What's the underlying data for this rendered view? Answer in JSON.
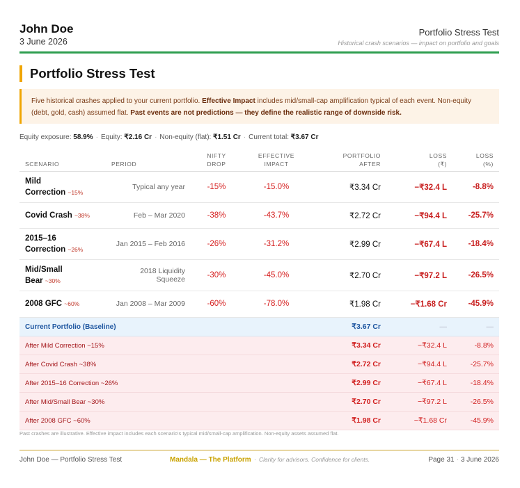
{
  "header": {
    "client_name": "John Doe",
    "date": "3 June 2026",
    "title": "Portfolio Stress Test",
    "subtitle": "Historical crash scenarios — impact on portfolio and goals"
  },
  "section_title": "Portfolio Stress Test",
  "callout": {
    "p1": "Five historical crashes applied to your current portfolio. ",
    "b1": "Effective Impact",
    "p2": " includes mid/small-cap amplification typical of each event. Non-equity (debt, gold, cash) assumed flat. ",
    "b2": "Past events are not predictions — they define the realistic range of downside risk."
  },
  "summary": {
    "equity_exposure_label": "Equity exposure:",
    "equity_exposure": "58.9%",
    "equity_label": "Equity:",
    "equity": "₹2.16 Cr",
    "non_equity_label": "Non-equity (flat):",
    "non_equity": "₹1.51 Cr",
    "total_label": "Current total:",
    "total": "₹3.67 Cr"
  },
  "columns": {
    "scenario": "Scenario",
    "period": "Period",
    "nifty_1": "Nifty",
    "nifty_2": "Drop",
    "effective_1": "Effective",
    "effective_2": "Impact",
    "portfolio_1": "Portfolio",
    "portfolio_2": "After",
    "loss_rs_1": "Loss",
    "loss_rs_2": "(₹)",
    "loss_pct_1": "Loss",
    "loss_pct_2": "(%)"
  },
  "scenarios": [
    {
      "name": "Mild Correction",
      "tag": "~15%",
      "period": "Typical any year",
      "nifty": "-15%",
      "effective": "-15.0%",
      "after": "₹3.34 Cr",
      "loss": "−₹32.4 L",
      "loss_pct": "-8.8%"
    },
    {
      "name": "Covid Crash",
      "tag": "~38%",
      "period": "Feb – Mar 2020",
      "nifty": "-38%",
      "effective": "-43.7%",
      "after": "₹2.72 Cr",
      "loss": "−₹94.4 L",
      "loss_pct": "-25.7%"
    },
    {
      "name": "2015–16 Correction",
      "tag": "~26%",
      "period": "Jan 2015 – Feb 2016",
      "nifty": "-26%",
      "effective": "-31.2%",
      "after": "₹2.99 Cr",
      "loss": "−₹67.4 L",
      "loss_pct": "-18.4%"
    },
    {
      "name": "Mid/Small Bear",
      "tag": "~30%",
      "period": "2018 Liquidity Squeeze",
      "nifty": "-30%",
      "effective": "-45.0%",
      "after": "₹2.70 Cr",
      "loss": "−₹97.2 L",
      "loss_pct": "-26.5%"
    },
    {
      "name": "2008 GFC",
      "tag": "~60%",
      "period": "Jan 2008 – Mar 2009",
      "nifty": "-60%",
      "effective": "-78.0%",
      "after": "₹1.98 Cr",
      "loss": "−₹1.68 Cr",
      "loss_pct": "-45.9%"
    }
  ],
  "baseline": {
    "label": "Current Portfolio (Baseline)",
    "after": "₹3.67 Cr",
    "loss": "—",
    "loss_pct": "—"
  },
  "after_rows": [
    {
      "label": "After Mild Correction ~15%",
      "after": "₹3.34 Cr",
      "loss": "−₹32.4 L",
      "loss_pct": "-8.8%"
    },
    {
      "label": "After Covid Crash ~38%",
      "after": "₹2.72 Cr",
      "loss": "−₹94.4 L",
      "loss_pct": "-25.7%"
    },
    {
      "label": "After 2015–16 Correction ~26%",
      "after": "₹2.99 Cr",
      "loss": "−₹67.4 L",
      "loss_pct": "-18.4%"
    },
    {
      "label": "After Mid/Small Bear ~30%",
      "after": "₹2.70 Cr",
      "loss": "−₹97.2 L",
      "loss_pct": "-26.5%"
    },
    {
      "label": "After 2008 GFC ~60%",
      "after": "₹1.98 Cr",
      "loss": "−₹1.68 Cr",
      "loss_pct": "-45.9%"
    }
  ],
  "footnote": "Past crashes are illustrative. Effective impact includes each scenario's typical mid/small-cap amplification. Non-equity assets assumed flat.",
  "footer": {
    "left": "John Doe — Portfolio Stress Test",
    "brand": "Mandala — The Platform",
    "tagline": "Clarity for advisors. Confidence for clients.",
    "page": "Page 31",
    "date": "3 June 2026"
  },
  "colors": {
    "accent_green": "#2e9e4f",
    "accent_amber": "#f0a500",
    "loss_red": "#d12020",
    "baseline_blue": "#1e56a0",
    "brand_gold": "#c9a200"
  }
}
